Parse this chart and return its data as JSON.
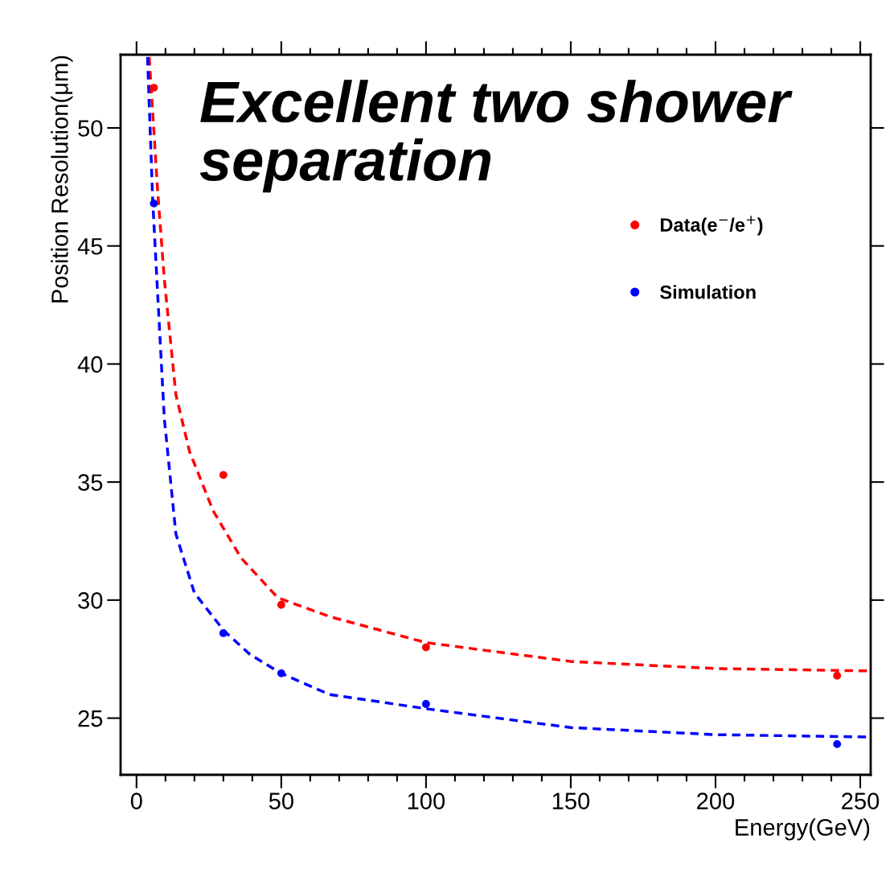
{
  "chart_data": {
    "type": "scatter",
    "xlabel": "Energy(GeV)",
    "ylabel": "Position Resolution(μm)",
    "annotations": [
      "Excellent two shower separation"
    ],
    "xlim": [
      -5.5,
      253.6
    ],
    "ylim": [
      22.6,
      53.1
    ],
    "xticks": [
      0,
      50,
      100,
      150,
      200,
      250
    ],
    "yticks": [
      25,
      30,
      35,
      40,
      45,
      50
    ],
    "grid": false,
    "legend": "top right",
    "marker": "circle",
    "series": [
      {
        "name": "Data(e$^{−}$/e$^{+}$)",
        "color": "#ff0000",
        "x": [
          6,
          30,
          50,
          100,
          242
        ],
        "values": [
          51.7,
          35.3,
          29.8,
          28.0,
          26.8
        ]
      },
      {
        "name": "Simulation",
        "color": "#0000ff",
        "x": [
          6,
          30,
          50,
          100,
          242
        ],
        "values": [
          46.8,
          28.6,
          26.9,
          25.6,
          23.9
        ]
      },
      {
        "type": "line",
        "line_style": "dashed",
        "marker": "none",
        "color": "#ff0000",
        "x": [
          4.4,
          7.2,
          9.6,
          13.6,
          18.3,
          26.4,
          36.0,
          48.8,
          66.7,
          100,
          150,
          200,
          253.6
        ],
        "values": [
          53.0,
          47.5,
          43.6,
          38.7,
          36.3,
          33.8,
          31.8,
          30.1,
          29.3,
          28.2,
          27.4,
          27.1,
          27.0
        ]
      },
      {
        "type": "line",
        "line_style": "dashed",
        "marker": "none",
        "color": "#0000ff",
        "x": [
          3.8,
          5.6,
          7.2,
          9.6,
          13.6,
          20.0,
          30.2,
          39.2,
          49.9,
          66.7,
          100,
          150,
          200,
          253.6
        ],
        "values": [
          53.0,
          46.9,
          43.2,
          37.7,
          32.8,
          30.3,
          28.7,
          27.7,
          26.9,
          26.0,
          25.4,
          24.6,
          24.3,
          24.2
        ]
      }
    ]
  }
}
